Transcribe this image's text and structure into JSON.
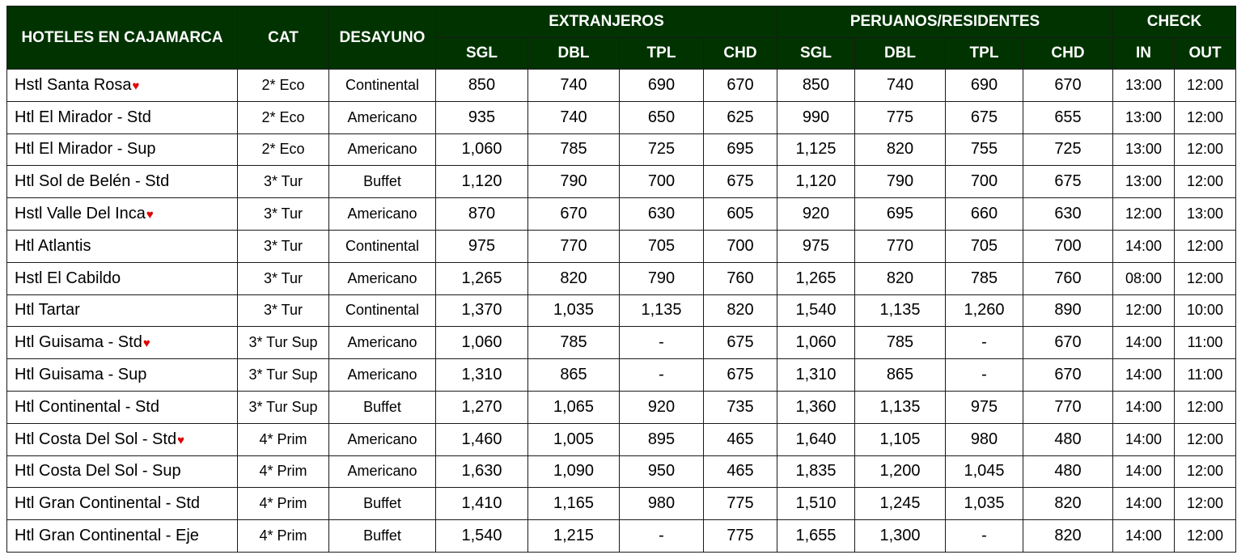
{
  "headers": {
    "hotel": "HOTELES EN CAJAMARCA",
    "cat": "CAT",
    "breakfast": "DESAYUNO",
    "foreign": "EXTRANJEROS",
    "residents": "PERUANOS/RESIDENTES",
    "check": "CHECK",
    "sgl": "SGL",
    "dbl": "DBL",
    "tpl": "TPL",
    "chd": "CHD",
    "in": "IN",
    "out": "OUT"
  },
  "heart_icon": "♥",
  "colors": {
    "header_bg": "#003300",
    "heart": "#e00000"
  },
  "rows": [
    {
      "hotel": "Hstl Santa Rosa",
      "heart": true,
      "cat": "2* Eco",
      "breakfast": "Continental",
      "f": [
        "850",
        "740",
        "690",
        "670"
      ],
      "r": [
        "850",
        "740",
        "690",
        "670"
      ],
      "in": "13:00",
      "out": "12:00"
    },
    {
      "hotel": "Htl El Mirador - Std",
      "heart": false,
      "cat": "2* Eco",
      "breakfast": "Americano",
      "f": [
        "935",
        "740",
        "650",
        "625"
      ],
      "r": [
        "990",
        "775",
        "675",
        "655"
      ],
      "in": "13:00",
      "out": "12:00"
    },
    {
      "hotel": "Htl El Mirador - Sup",
      "heart": false,
      "cat": "2* Eco",
      "breakfast": "Americano",
      "f": [
        "1,060",
        "785",
        "725",
        "695"
      ],
      "r": [
        "1,125",
        "820",
        "755",
        "725"
      ],
      "in": "13:00",
      "out": "12:00"
    },
    {
      "hotel": "Htl Sol de Belén - Std",
      "heart": false,
      "cat": "3* Tur",
      "breakfast": "Buffet",
      "f": [
        "1,120",
        "790",
        "700",
        "675"
      ],
      "r": [
        "1,120",
        "790",
        "700",
        "675"
      ],
      "in": "13:00",
      "out": "12:00"
    },
    {
      "hotel": "Hstl Valle Del Inca",
      "heart": true,
      "cat": "3* Tur",
      "breakfast": "Americano",
      "f": [
        "870",
        "670",
        "630",
        "605"
      ],
      "r": [
        "920",
        "695",
        "660",
        "630"
      ],
      "in": "12:00",
      "out": "13:00"
    },
    {
      "hotel": "Htl Atlantis",
      "heart": false,
      "cat": "3* Tur",
      "breakfast": "Continental",
      "f": [
        "975",
        "770",
        "705",
        "700"
      ],
      "r": [
        "975",
        "770",
        "705",
        "700"
      ],
      "in": "14:00",
      "out": "12:00"
    },
    {
      "hotel": "Hstl El Cabildo",
      "heart": false,
      "cat": "3* Tur",
      "breakfast": "Americano",
      "f": [
        "1,265",
        "820",
        "790",
        "760"
      ],
      "r": [
        "1,265",
        "820",
        "785",
        "760"
      ],
      "in": "08:00",
      "out": "12:00"
    },
    {
      "hotel": "Htl Tartar",
      "heart": false,
      "cat": "3* Tur",
      "breakfast": "Continental",
      "f": [
        "1,370",
        "1,035",
        "1,135",
        "820"
      ],
      "r": [
        "1,540",
        "1,135",
        "1,260",
        "890"
      ],
      "in": "12:00",
      "out": "10:00"
    },
    {
      "hotel": "Htl Guisama - Std",
      "heart": true,
      "cat": "3* Tur Sup",
      "breakfast": "Americano",
      "f": [
        "1,060",
        "785",
        "-",
        "675"
      ],
      "r": [
        "1,060",
        "785",
        "-",
        "670"
      ],
      "in": "14:00",
      "out": "11:00"
    },
    {
      "hotel": "Htl Guisama - Sup",
      "heart": false,
      "cat": "3* Tur Sup",
      "breakfast": "Americano",
      "f": [
        "1,310",
        "865",
        "-",
        "675"
      ],
      "r": [
        "1,310",
        "865",
        "-",
        "670"
      ],
      "in": "14:00",
      "out": "11:00"
    },
    {
      "hotel": "Htl Continental - Std",
      "heart": false,
      "cat": "3* Tur Sup",
      "breakfast": "Buffet",
      "f": [
        "1,270",
        "1,065",
        "920",
        "735"
      ],
      "r": [
        "1,360",
        "1,135",
        "975",
        "770"
      ],
      "in": "14:00",
      "out": "12:00"
    },
    {
      "hotel": "Htl Costa Del Sol - Std",
      "heart": true,
      "cat": "4* Prim",
      "breakfast": "Americano",
      "f": [
        "1,460",
        "1,005",
        "895",
        "465"
      ],
      "r": [
        "1,640",
        "1,105",
        "980",
        "480"
      ],
      "in": "14:00",
      "out": "12:00"
    },
    {
      "hotel": "Htl Costa Del Sol - Sup",
      "heart": false,
      "cat": "4* Prim",
      "breakfast": "Americano",
      "f": [
        "1,630",
        "1,090",
        "950",
        "465"
      ],
      "r": [
        "1,835",
        "1,200",
        "1,045",
        "480"
      ],
      "in": "14:00",
      "out": "12:00"
    },
    {
      "hotel": "Htl Gran Continental - Std",
      "heart": false,
      "cat": "4* Prim",
      "breakfast": "Buffet",
      "f": [
        "1,410",
        "1,165",
        "980",
        "775"
      ],
      "r": [
        "1,510",
        "1,245",
        "1,035",
        "820"
      ],
      "in": "14:00",
      "out": "12:00"
    },
    {
      "hotel": "Htl Gran Continental - Eje",
      "heart": false,
      "cat": "4* Prim",
      "breakfast": "Buffet",
      "f": [
        "1,540",
        "1,215",
        "-",
        "775"
      ],
      "r": [
        "1,655",
        "1,300",
        "-",
        "820"
      ],
      "in": "14:00",
      "out": "12:00"
    }
  ]
}
